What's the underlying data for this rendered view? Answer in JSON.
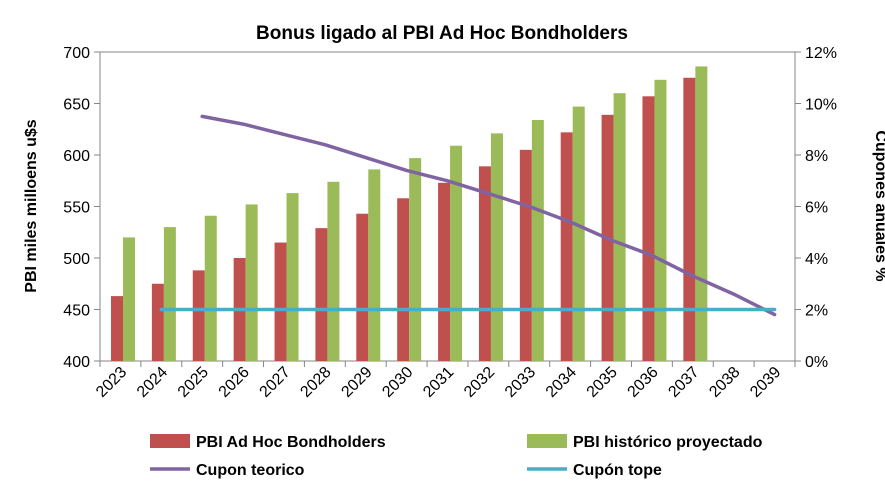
{
  "chart_data": {
    "type": "bar",
    "title": "Bonus ligado al PBI Ad Hoc Bondholders",
    "ylabel": "PBI miles milloens u$s",
    "y2label": "Cupones anuales %",
    "categories": [
      "2023",
      "2024",
      "2025",
      "2026",
      "2027",
      "2028",
      "2029",
      "2030",
      "2031",
      "2032",
      "2033",
      "2034",
      "2035",
      "2036",
      "2037",
      "2038",
      "2039"
    ],
    "ylim": [
      400,
      700
    ],
    "yticks": [
      400,
      450,
      500,
      550,
      600,
      650,
      700
    ],
    "y2lim": [
      0,
      12
    ],
    "y2ticks": [
      0,
      2,
      4,
      6,
      8,
      10,
      12
    ],
    "y2tick_labels": [
      "0%",
      "2%",
      "4%",
      "6%",
      "8%",
      "10%",
      "12%"
    ],
    "grid": false,
    "legend_position": "bottom",
    "series": [
      {
        "name": "PBI Ad Hoc Bondholders",
        "type": "bar",
        "axis": "left",
        "color": "#c0504d",
        "values": [
          463,
          475,
          488,
          500,
          515,
          529,
          543,
          558,
          573,
          589,
          605,
          622,
          639,
          657,
          675,
          null,
          null
        ]
      },
      {
        "name": "PBI histórico proyectado",
        "type": "bar",
        "axis": "left",
        "color": "#9bbb59",
        "values": [
          520,
          530,
          541,
          552,
          563,
          574,
          586,
          597,
          609,
          621,
          634,
          647,
          660,
          673,
          686,
          null,
          null
        ]
      },
      {
        "name": "Cupon teorico",
        "type": "line",
        "axis": "right",
        "color": "#8064a2",
        "values": [
          null,
          null,
          9.5,
          9.2,
          8.8,
          8.4,
          7.9,
          7.4,
          7.0,
          6.5,
          6.0,
          5.4,
          4.7,
          4.1,
          3.3,
          2.6,
          1.8
        ]
      },
      {
        "name": "Cupón tope",
        "type": "line",
        "axis": "right",
        "color": "#4bacc6",
        "values": [
          null,
          2,
          2,
          2,
          2,
          2,
          2,
          2,
          2,
          2,
          2,
          2,
          2,
          2,
          2,
          2,
          2
        ]
      }
    ]
  }
}
